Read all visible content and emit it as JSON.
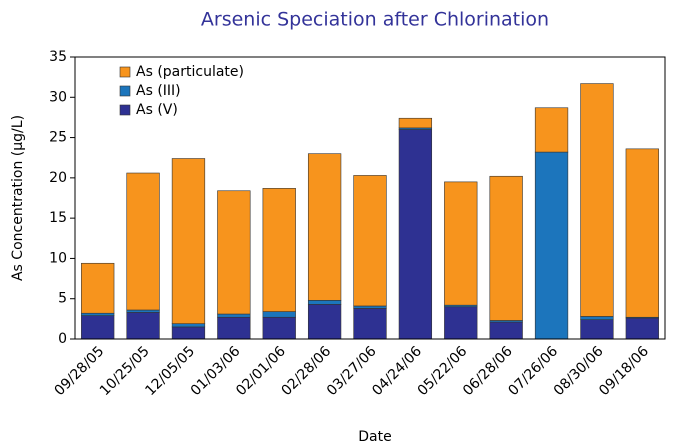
{
  "chart_data": {
    "type": "stacked_bar",
    "title": "Arsenic Speciation after Chlorination",
    "x_label": "Date",
    "y_label": "As Concentration (µg/L)",
    "categories": [
      "09/28/05",
      "10/25/05",
      "12/05/05",
      "01/03/06",
      "02/01/06",
      "02/28/06",
      "03/27/06",
      "04/24/06",
      "05/22/06",
      "06/28/06",
      "07/26/06",
      "08/30/06",
      "09/18/06"
    ],
    "series": [
      {
        "name": "As (particulate)",
        "color": "#f7941d",
        "values": [
          6.2,
          17.0,
          20.5,
          15.3,
          15.3,
          18.2,
          16.2,
          1.2,
          15.3,
          17.9,
          5.5,
          28.9,
          20.9
        ]
      },
      {
        "name": "As (III)",
        "color": "#1c75bc",
        "values": [
          0.3,
          0.3,
          0.4,
          0.4,
          0.7,
          0.5,
          0.3,
          0.2,
          0.2,
          0.2,
          23.2,
          0.4,
          0.1
        ]
      },
      {
        "name": "As (V)",
        "color": "#2e3192",
        "values": [
          2.9,
          3.3,
          1.5,
          2.7,
          2.7,
          4.3,
          3.8,
          26.0,
          4.0,
          2.1,
          0,
          2.4,
          2.6
        ]
      }
    ],
    "ylim": [
      0,
      35
    ],
    "yticks": [
      0,
      5,
      10,
      15,
      20,
      25,
      30,
      35
    ],
    "legend": "upper left",
    "grid": false
  }
}
